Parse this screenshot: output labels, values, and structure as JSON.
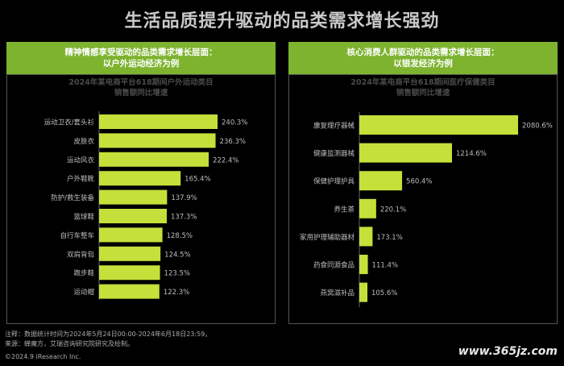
{
  "title": "生活品质提升驱动的品类需求增长强劲",
  "panels": [
    {
      "header_line1": "精神情感享受驱动的品类需求增长层面：",
      "header_line2": "以户外运动经济为例",
      "chart_title_line1": "2024年某电商平台618期间户外运动类目",
      "chart_title_line2": "销售额同比增速"
    },
    {
      "header_line1": "核心消费人群驱动的品类需求增长层面：",
      "header_line2": "以银发经济为例",
      "chart_title_line1": "2024年某电商平台618期间医疗保健类目",
      "chart_title_line2": "销售额同比增速"
    }
  ],
  "chart_data": [
    {
      "type": "bar",
      "orientation": "horizontal",
      "title": "2024年某电商平台618期间户外运动类目销售额同比增速",
      "categories": [
        "运动卫衣/套头衫",
        "皮肤衣",
        "运动风衣",
        "户外鞋靴",
        "防护/救生装备",
        "篮球鞋",
        "自行车整车",
        "双肩背包",
        "跑步鞋",
        "运动帽"
      ],
      "values": [
        240.3,
        236.3,
        222.4,
        165.4,
        137.9,
        137.3,
        128.5,
        124.5,
        123.5,
        122.3
      ],
      "labels": [
        "240.3%",
        "236.3%",
        "222.4%",
        "165.4%",
        "137.9%",
        "137.3%",
        "128.5%",
        "124.5%",
        "123.5%",
        "122.3%"
      ],
      "unit": "%",
      "color": "#c5e03a"
    },
    {
      "type": "bar",
      "orientation": "horizontal",
      "title": "2024年某电商平台618期间医疗保健类目销售额同比增速",
      "categories": [
        "康复理疗器械",
        "健康监测器械",
        "保健护理护具",
        "养生茶",
        "家用护理辅助器材",
        "药食同源食品",
        "燕窝滋补品"
      ],
      "values": [
        2080.6,
        1214.6,
        560.4,
        220.1,
        173.1,
        111.4,
        105.6
      ],
      "labels": [
        "2080.6%",
        "1214.6%",
        "560.4%",
        "220.1%",
        "173.1%",
        "111.4%",
        "105.6%"
      ],
      "unit": "%",
      "color": "#c5e03a"
    }
  ],
  "footnote_line1": "注释：数据统计时间为2024年5月24日00:00-2024年6月18日23:59。",
  "footnote_line2": "来源：蝉魔方，艾瑞咨询研究院研究及绘制。",
  "copyright": "©2024.9 iResearch Inc.",
  "watermark": "www.365jz.com"
}
